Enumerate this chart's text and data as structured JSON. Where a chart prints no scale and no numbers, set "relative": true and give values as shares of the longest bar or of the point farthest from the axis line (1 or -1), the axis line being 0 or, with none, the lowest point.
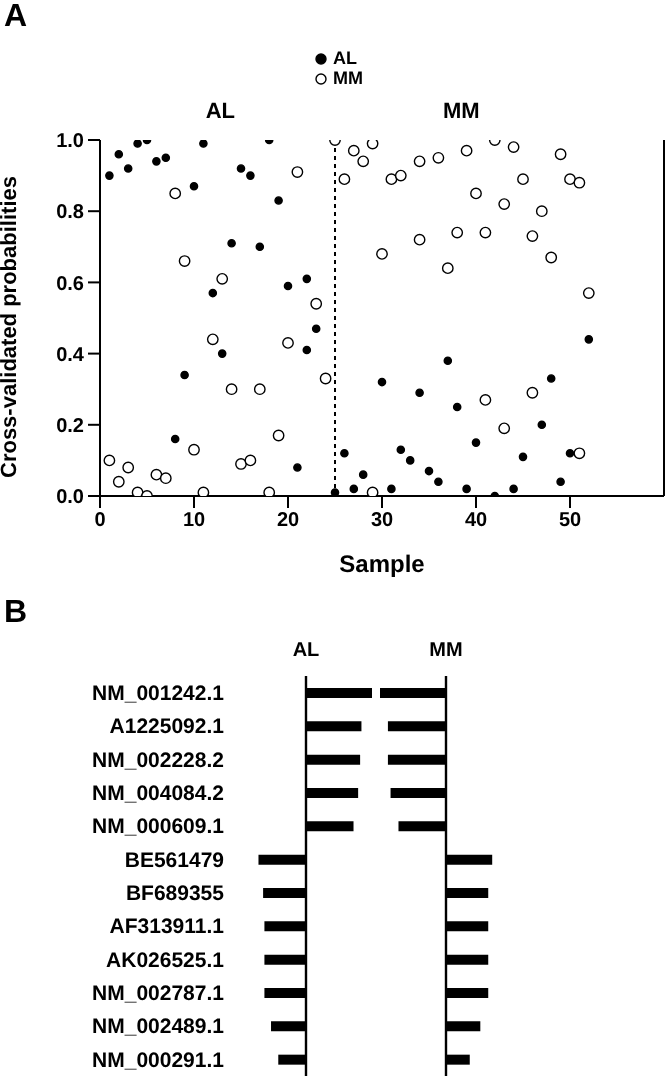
{
  "chart_data": [
    {
      "type": "scatter",
      "xlabel": "Sample",
      "ylabel": "Cross-validated probabilities",
      "annotations": [
        "A",
        "AL",
        "MM"
      ],
      "legend": "top",
      "marker": "circle",
      "grid": false,
      "xlim": [
        0,
        60
      ],
      "xticks": [
        0,
        10,
        20,
        30,
        40,
        50
      ],
      "ylim": [
        0,
        1
      ],
      "yticks": [
        "0.0",
        0.2,
        0.4,
        0.6,
        0.8,
        "1.0"
      ],
      "ref_lines": [
        {
          "axis": "x",
          "value": 25,
          "line_style": "dotted",
          "color": "#000000"
        }
      ],
      "series": [
        {
          "name": "AL",
          "color": "#000000",
          "x": [
            1,
            2,
            3,
            4,
            5,
            6,
            7,
            8,
            9,
            10,
            11,
            12,
            13,
            14,
            15,
            16,
            17,
            18,
            19,
            20,
            21,
            22,
            22,
            23,
            25,
            26,
            27,
            28,
            30,
            31,
            32,
            33,
            34,
            35,
            36,
            37,
            38,
            39,
            40,
            42,
            44,
            45,
            47,
            48,
            49,
            50,
            52
          ],
          "values": [
            0.9,
            0.96,
            0.92,
            0.99,
            1.0,
            0.94,
            0.95,
            0.16,
            0.34,
            0.87,
            0.99,
            0.57,
            0.4,
            0.71,
            0.92,
            0.9,
            0.7,
            1.0,
            0.83,
            0.59,
            0.08,
            0.61,
            0.41,
            0.47,
            0.01,
            0.12,
            0.02,
            0.06,
            0.32,
            0.02,
            0.13,
            0.1,
            0.29,
            0.07,
            0.04,
            0.38,
            0.25,
            0.02,
            0.15,
            0.0,
            0.02,
            0.11,
            0.2,
            0.33,
            0.04,
            0.12,
            0.44
          ]
        },
        {
          "name": "MM",
          "color": "#ffffff",
          "x": [
            1,
            2,
            3,
            4,
            5,
            6,
            7,
            8,
            9,
            10,
            11,
            12,
            13,
            14,
            15,
            16,
            17,
            18,
            19,
            20,
            21,
            23,
            24,
            25,
            26,
            27,
            28,
            29,
            29,
            30,
            31,
            32,
            34,
            34,
            36,
            37,
            38,
            39,
            40,
            41,
            41,
            42,
            43,
            43,
            44,
            45,
            46,
            46,
            47,
            48,
            49,
            50,
            51,
            51,
            52
          ],
          "values": [
            0.1,
            0.04,
            0.08,
            0.01,
            0.0,
            0.06,
            0.05,
            0.85,
            0.66,
            0.13,
            0.01,
            0.44,
            0.61,
            0.3,
            0.09,
            0.1,
            0.3,
            0.01,
            0.17,
            0.43,
            0.91,
            0.54,
            0.33,
            1.0,
            0.89,
            0.97,
            0.94,
            0.99,
            0.01,
            0.68,
            0.89,
            0.9,
            0.94,
            0.72,
            0.95,
            0.64,
            0.74,
            0.97,
            0.85,
            0.74,
            0.27,
            1.0,
            0.82,
            0.19,
            0.98,
            0.89,
            0.73,
            0.29,
            0.8,
            0.67,
            0.96,
            0.89,
            0.88,
            0.12,
            0.57
          ]
        }
      ]
    },
    {
      "type": "bar",
      "orientation": "horizontal",
      "relative": true,
      "title": "AL",
      "annotations": [
        "B"
      ],
      "categories": [
        "NM_001242.1",
        "A1225092.1",
        "NM_002228.2",
        "NM_004084.2",
        "NM_000609.1",
        "BE561479",
        "BF689355",
        "AF313911.1",
        "AK026525.1",
        "NM_002787.1",
        "NM_002489.1",
        "NM_000291.1"
      ],
      "color": "#000000",
      "values": [
        1,
        0.84,
        0.82,
        0.79,
        0.72,
        -0.72,
        -0.65,
        -0.63,
        -0.63,
        -0.63,
        -0.53,
        -0.42
      ]
    },
    {
      "type": "bar",
      "orientation": "horizontal",
      "relative": true,
      "title": "MM",
      "categories": [
        null,
        null,
        null,
        null,
        null,
        null,
        null,
        null,
        null,
        null,
        null,
        null
      ],
      "color": "#000000",
      "values": [
        -1,
        -0.88,
        -0.88,
        -0.84,
        -0.72,
        0.7,
        0.64,
        0.64,
        0.64,
        0.64,
        0.52,
        0.36
      ]
    }
  ]
}
